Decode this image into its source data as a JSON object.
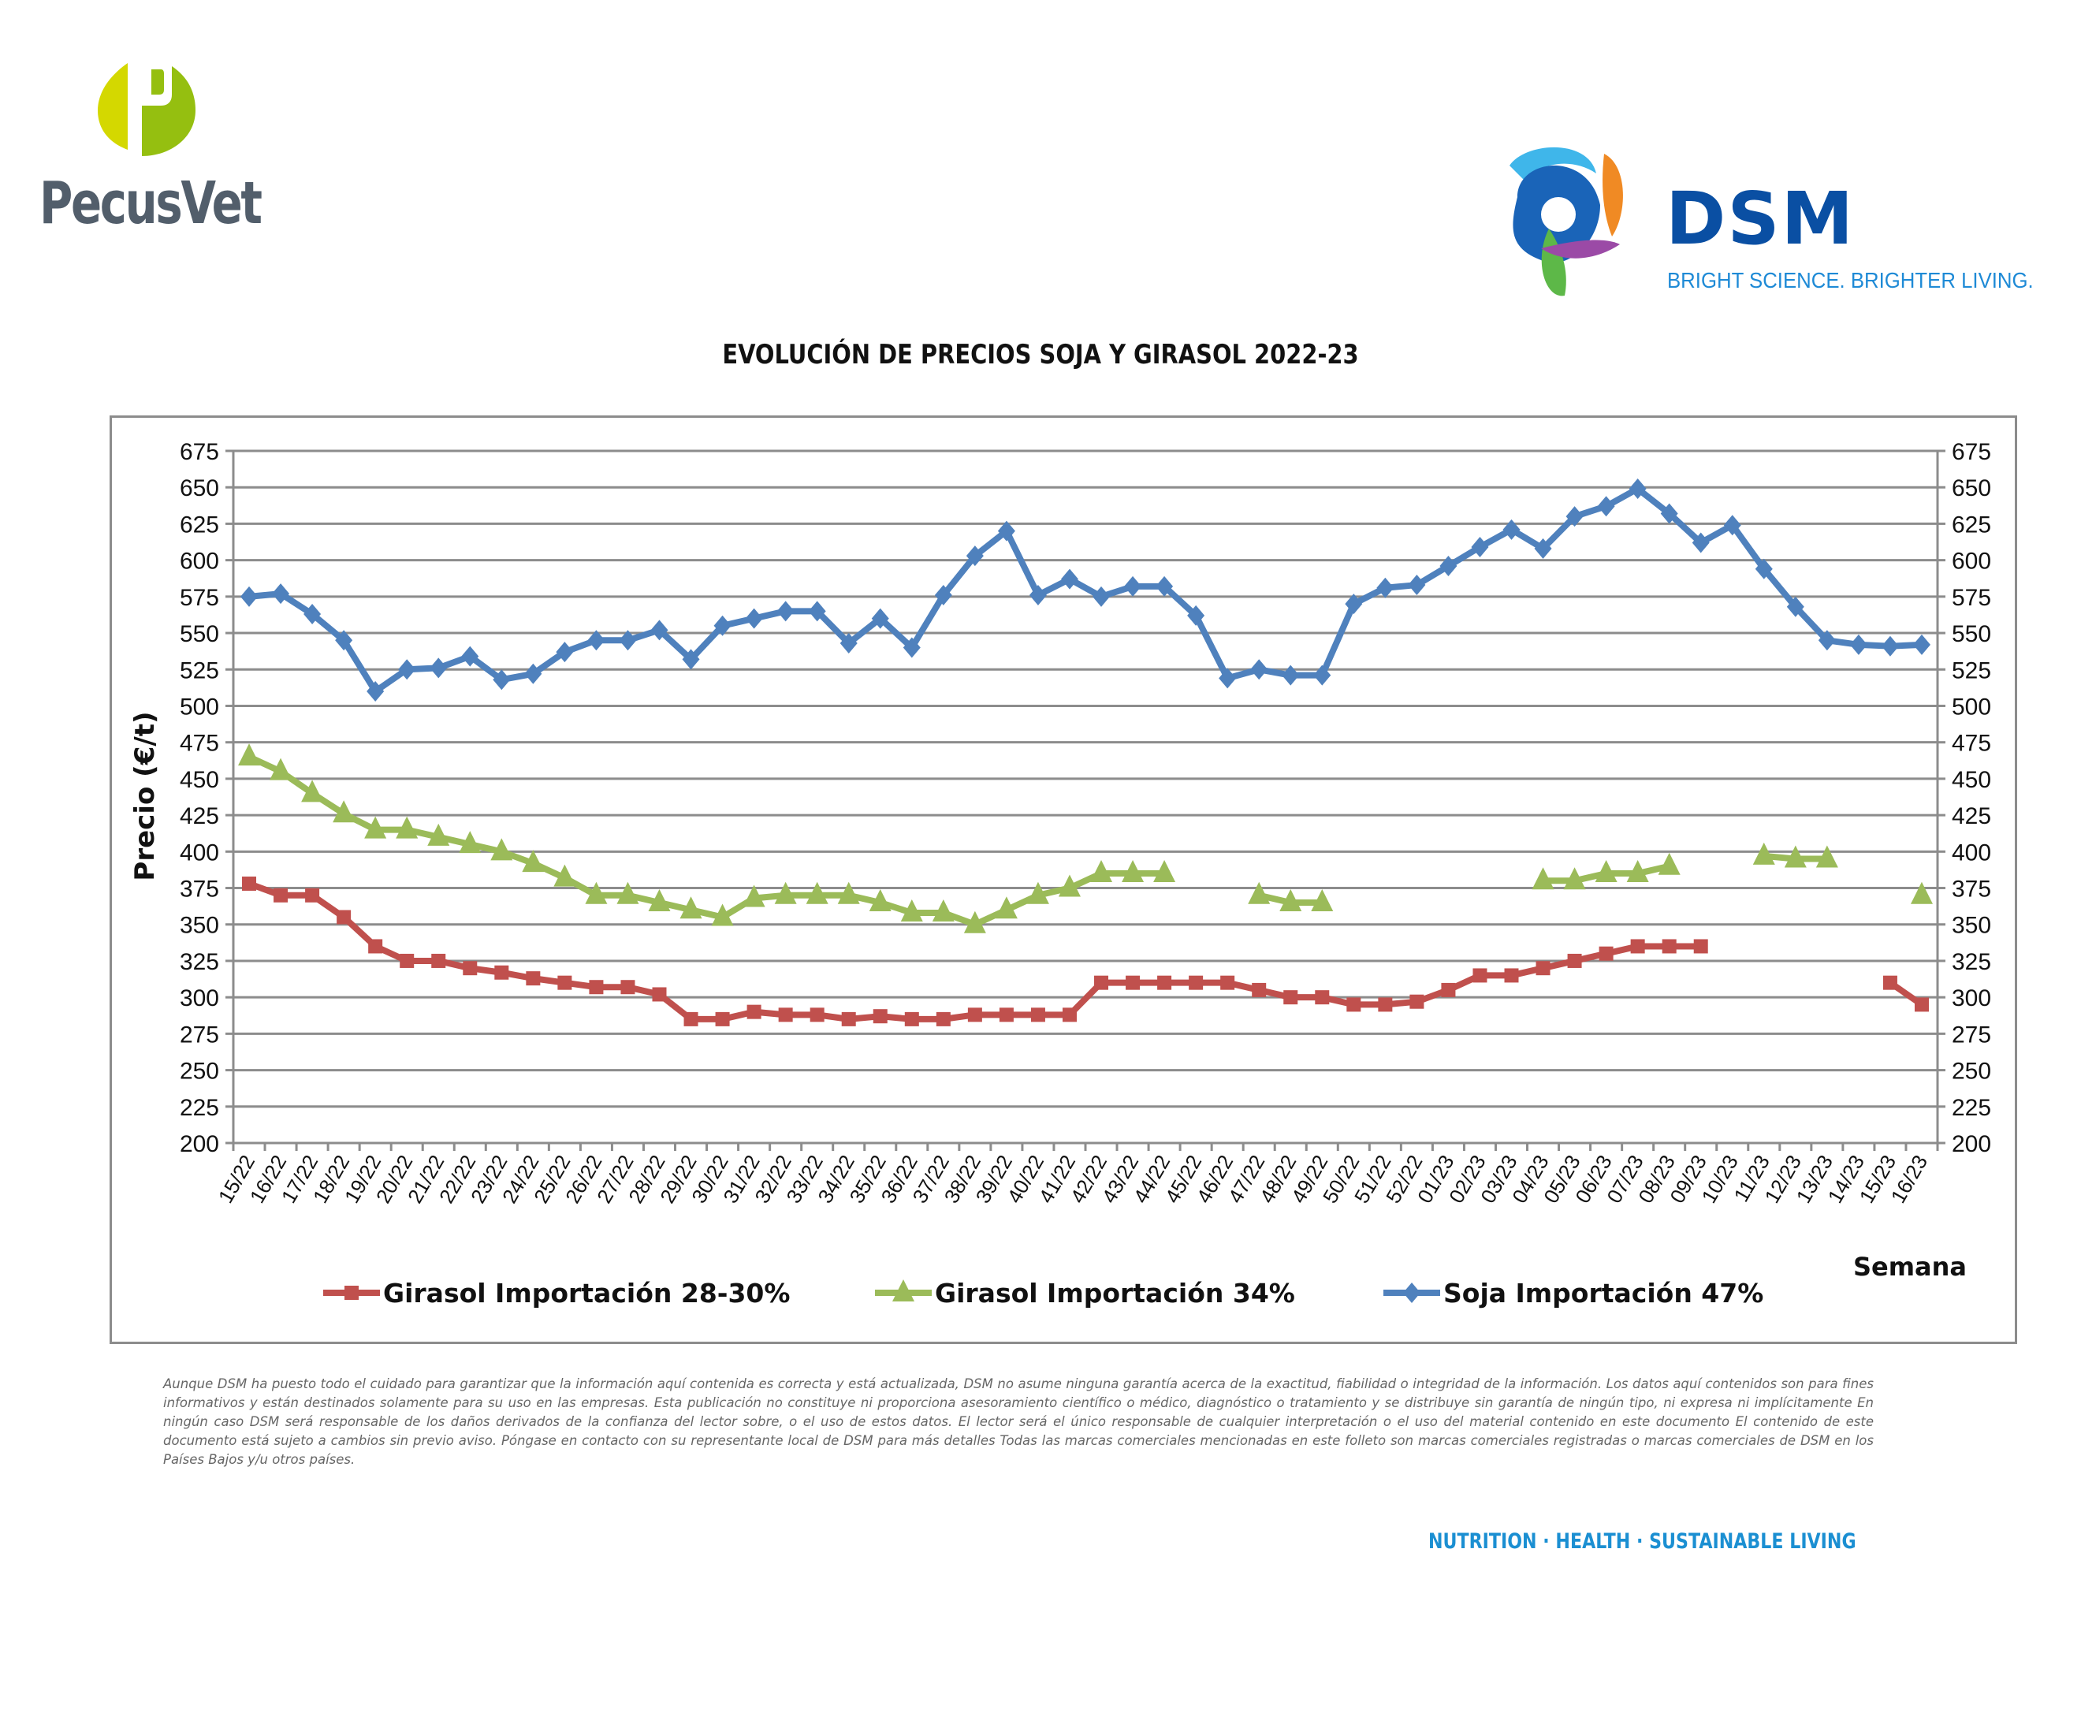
{
  "header": {
    "left_logo": {
      "name": "PecusVet",
      "icon": "pecusvet-p-logo",
      "colors": {
        "light": "#d4d800",
        "dark": "#95bf10",
        "text": "#525e6b"
      }
    },
    "right_logo": {
      "name": "DSM",
      "tagline": "BRIGHT SCIENCE. BRIGHTER LIVING.",
      "icon": "dsm-swirl-logo",
      "colors": {
        "text": "#0a4fa3",
        "tagline": "#1e8ad6"
      }
    }
  },
  "chart_data": {
    "type": "line",
    "title": "EVOLUCIÓN DE PRECIOS SOJA Y GIRASOL 2022-23",
    "xlabel": "Semana",
    "ylabel": "Precio (€/t)",
    "ylim": [
      200,
      675
    ],
    "yticks": [
      200,
      225,
      250,
      275,
      300,
      325,
      350,
      375,
      400,
      425,
      450,
      475,
      500,
      525,
      550,
      575,
      600,
      625,
      650,
      675
    ],
    "secondary_y_axis_mirrored": true,
    "grid": true,
    "legend_position": "bottom",
    "categories": [
      "15/22",
      "16/22",
      "17/22",
      "18/22",
      "19/22",
      "20/22",
      "21/22",
      "22/22",
      "23/22",
      "24/22",
      "25/22",
      "26/22",
      "27/22",
      "28/22",
      "29/22",
      "30/22",
      "31/22",
      "32/22",
      "33/22",
      "34/22",
      "35/22",
      "36/22",
      "37/22",
      "38/22",
      "39/22",
      "40/22",
      "41/22",
      "42/22",
      "43/22",
      "44/22",
      "45/22",
      "46/22",
      "47/22",
      "48/22",
      "49/22",
      "50/22",
      "51/22",
      "52/22",
      "01/23",
      "02/23",
      "03/23",
      "04/23",
      "05/23",
      "06/23",
      "07/23",
      "08/23",
      "09/23",
      "10/23",
      "11/23",
      "12/23",
      "13/23",
      "14/23",
      "15/23",
      "16/23"
    ],
    "series": [
      {
        "name": "Girasol Importación 28-30%",
        "color": "#c0504d",
        "marker": "square",
        "values": [
          378,
          370,
          370,
          355,
          335,
          325,
          325,
          320,
          317,
          313,
          310,
          307,
          307,
          302,
          285,
          285,
          290,
          288,
          288,
          285,
          287,
          285,
          285,
          288,
          288,
          288,
          288,
          310,
          310,
          310,
          310,
          310,
          305,
          300,
          300,
          295,
          295,
          297,
          305,
          315,
          315,
          320,
          325,
          330,
          335,
          335,
          335,
          null,
          null,
          null,
          null,
          null,
          310,
          295
        ]
      },
      {
        "name": "Girasol Importación 34%",
        "color": "#9bbb59",
        "marker": "triangle",
        "values": [
          465,
          455,
          440,
          426,
          415,
          415,
          410,
          405,
          400,
          392,
          382,
          370,
          370,
          365,
          360,
          355,
          368,
          370,
          370,
          370,
          365,
          358,
          358,
          350,
          360,
          370,
          375,
          385,
          385,
          385,
          null,
          null,
          370,
          365,
          365,
          null,
          null,
          null,
          null,
          null,
          null,
          380,
          380,
          385,
          385,
          390,
          null,
          null,
          397,
          395,
          395,
          null,
          null,
          370
        ]
      },
      {
        "name": "Soja Importación 47%",
        "color": "#4f81bd",
        "marker": "diamond",
        "values": [
          575,
          577,
          563,
          545,
          510,
          525,
          526,
          534,
          518,
          522,
          537,
          545,
          545,
          552,
          532,
          555,
          560,
          565,
          565,
          543,
          560,
          540,
          576,
          603,
          620,
          576,
          587,
          575,
          582,
          582,
          562,
          519,
          525,
          521,
          521,
          570,
          581,
          583,
          596,
          609,
          621,
          608,
          630,
          637,
          649,
          632,
          612,
          624,
          594,
          568,
          545,
          542,
          541,
          542
        ]
      }
    ]
  },
  "footer": {
    "disclaimer": "Aunque DSM ha puesto todo el cuidado para garantizar que la información aquí contenida es correcta y está actualizada, DSM no asume ninguna garantía acerca de la exactitud, fiabilidad o integridad de la información. Los datos aquí contenidos son para fines informativos y están destinados solamente para su uso en las empresas. Esta publicación no constituye ni proporciona asesoramiento científico o médico, diagnóstico o tratamiento y se distribuye sin garantía de ningún tipo, ni expresa ni implícitamente En ningún caso DSM será responsable de los daños derivados de la confianza del lector sobre, o el uso de estos datos. El lector será el único responsable de cualquier interpretación o el uso del material contenido en este documento El contenido de este documento está sujeto a cambios sin previo aviso. Póngase en contacto con su representante local de DSM para más detalles Todas las marcas comerciales mencionadas en este folleto son marcas comerciales registradas o marcas comerciales de DSM en los Países Bajos y/u otros países.",
    "tagline": "NUTRITION  ·  HEALTH  ·  SUSTAINABLE LIVING"
  }
}
